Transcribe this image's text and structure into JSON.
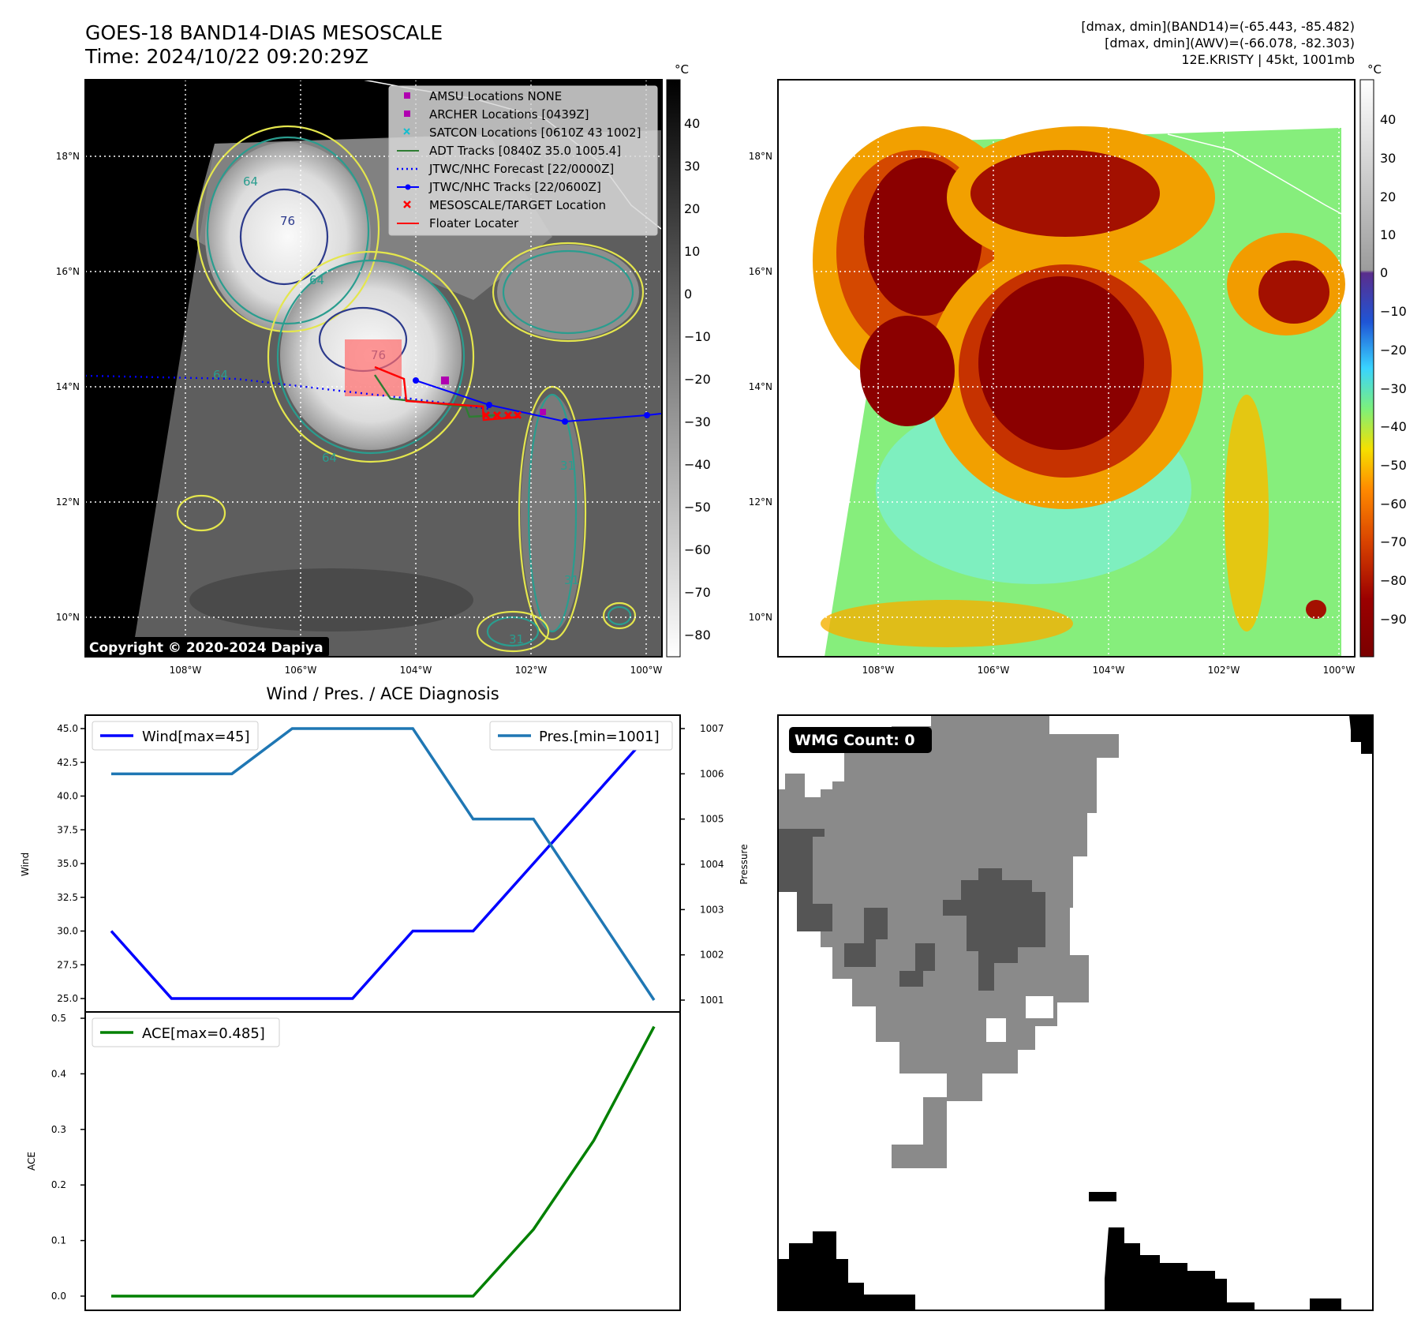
{
  "colors": {
    "wind": "#0000ff",
    "pressure": "#1f77b4",
    "ace": "#008000",
    "adt": "#2e7d32",
    "jtwc": "#0000ff",
    "floater": "#ff0000",
    "target": "#ff0000",
    "archer": "#b000b0",
    "satcon": "#17becf"
  },
  "header": {
    "title_line1": "GOES-18 BAND14-DIAS MESOSCALE",
    "title_line2": "Time: 2024/10/22 09:20:29Z",
    "stats_line1": "[dmax, dmin](BAND14)=(-65.443, -85.482)",
    "stats_line2": "[dmax, dmin](AWV)=(-66.078, -82.303)",
    "stats_line3": "12E.KRISTY | 45kt, 1001mb"
  },
  "ir_panel": {
    "copyright": "Copyright © 2020-2024 Dapiya",
    "lat_labels": [
      "18°N",
      "16°N",
      "14°N",
      "12°N",
      "10°N"
    ],
    "lon_labels": [
      "108°W",
      "106°W",
      "104°W",
      "102°W",
      "100°W"
    ],
    "contour_labels": [
      "64",
      "76",
      "64",
      "76",
      "64",
      "31",
      "31",
      "64",
      "31"
    ],
    "colorbar_unit": "°C",
    "colorbar_ticks": [
      "40",
      "30",
      "20",
      "10",
      "0",
      "−10",
      "−20",
      "−30",
      "−40",
      "−50",
      "−60",
      "−70",
      "−80"
    ],
    "legend": [
      {
        "label": "AMSU Locations NONE",
        "icon": "square-marker"
      },
      {
        "label": "ARCHER Locations [0439Z]",
        "icon": "square-marker"
      },
      {
        "label": "SATCON Locations [0610Z 43 1002]",
        "icon": "x-marker"
      },
      {
        "label": "ADT Tracks [0840Z 35.0 1005.4]",
        "icon": "solid-line"
      },
      {
        "label": "JTWC/NHC Forecast [22/0000Z]",
        "icon": "dotted-line"
      },
      {
        "label": "JTWC/NHC Tracks [22/0600Z]",
        "icon": "line-dot"
      },
      {
        "label": "MESOSCALE/TARGET Location",
        "icon": "x-marker"
      },
      {
        "label": "Floater Locater",
        "icon": "solid-line"
      }
    ]
  },
  "awv_panel": {
    "lat_labels": [
      "18°N",
      "16°N",
      "14°N",
      "12°N",
      "10°N"
    ],
    "lon_labels": [
      "108°W",
      "106°W",
      "104°W",
      "102°W",
      "100°W"
    ],
    "colorbar_unit": "°C",
    "colorbar_ticks": [
      "40",
      "30",
      "20",
      "10",
      "0",
      "−10",
      "−20",
      "−30",
      "−40",
      "−50",
      "−60",
      "−70",
      "−80",
      "−90"
    ]
  },
  "wmg_panel": {
    "count_label": "WMG Count: 0"
  },
  "chart_data": [
    {
      "type": "line",
      "title": "Wind / Pres. / ACE Diagnosis",
      "x": [
        0,
        1,
        2,
        3,
        4,
        5,
        6,
        7,
        8,
        9
      ],
      "series": [
        {
          "name": "Wind[max=45]",
          "axis": "left",
          "values": [
            30,
            25,
            25,
            25,
            25,
            30,
            30,
            35,
            40,
            45
          ]
        },
        {
          "name": "Pres.[min=1001]",
          "axis": "right",
          "values": [
            1006,
            1006,
            1006,
            1007,
            1007,
            1007,
            1005,
            1005,
            1003,
            1001
          ]
        }
      ],
      "ylabel": "Wind",
      "y2label": "Pressure",
      "ylim": [
        25,
        45
      ],
      "y2lim": [
        1001,
        1007
      ],
      "yticks": [
        "25.0",
        "27.5",
        "30.0",
        "32.5",
        "35.0",
        "37.5",
        "40.0",
        "42.5",
        "45.0"
      ],
      "y2ticks": [
        "1001",
        "1002",
        "1003",
        "1004",
        "1005",
        "1006",
        "1007"
      ]
    },
    {
      "type": "line",
      "series": [
        {
          "name": "ACE[max=0.485]",
          "values": [
            0,
            0,
            0,
            0,
            0,
            0,
            0,
            0.12,
            0.28,
            0.485
          ]
        }
      ],
      "x": [
        0,
        1,
        2,
        3,
        4,
        5,
        6,
        7,
        8,
        9
      ],
      "ylabel": "ACE",
      "ylim": [
        0,
        0.5
      ],
      "yticks": [
        "0.0",
        "0.1",
        "0.2",
        "0.3",
        "0.4",
        "0.5"
      ]
    }
  ]
}
